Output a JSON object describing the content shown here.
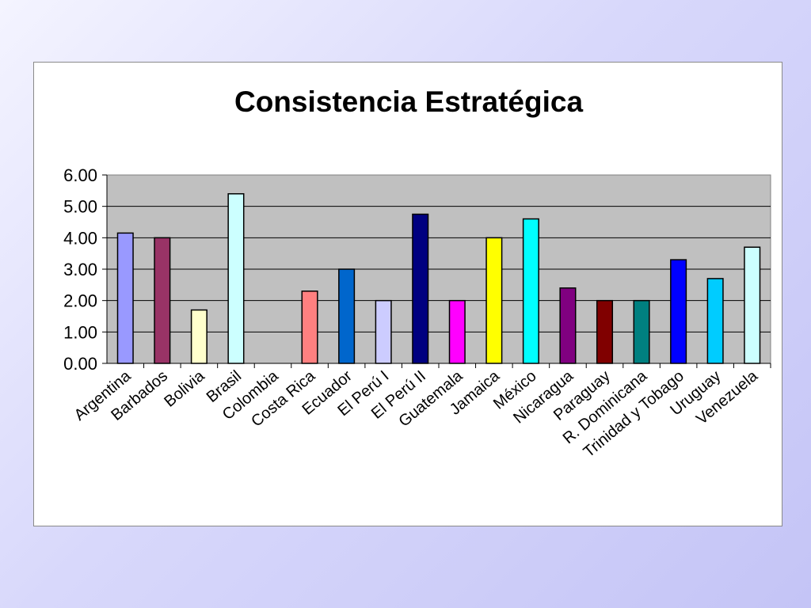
{
  "chart_data": {
    "type": "bar",
    "title": "Consistencia Estratégica",
    "xlabel": "",
    "ylabel": "",
    "ylim": [
      0,
      6
    ],
    "yticks": [
      "0.00",
      "1.00",
      "2.00",
      "3.00",
      "4.00",
      "5.00",
      "6.00"
    ],
    "grid": true,
    "legend": "none",
    "categories": [
      "Argentina",
      "Barbados",
      "Bolivia",
      "Brasil",
      "Colombia",
      "Costa Rica",
      "Ecuador",
      "El Perú I",
      "El Perú II",
      "Guatemala",
      "Jamaica",
      "México",
      "Nicaragua",
      "Paraguay",
      "R. Dominicana",
      "Trinidad y Tobago",
      "Uruguay",
      "Venezuela"
    ],
    "values": [
      4.15,
      4.0,
      1.7,
      5.4,
      0.0,
      2.3,
      3.0,
      2.0,
      4.75,
      2.0,
      4.0,
      4.6,
      2.4,
      2.0,
      2.0,
      3.3,
      2.7,
      3.7
    ],
    "colors": [
      "#9999ff",
      "#993366",
      "#ffffcc",
      "#ccffff",
      "#ffffff",
      "#ff8080",
      "#0066cc",
      "#ccccff",
      "#000080",
      "#ff00ff",
      "#ffff00",
      "#00ffff",
      "#800080",
      "#800000",
      "#008080",
      "#0000ff",
      "#00ccff",
      "#ccffff"
    ],
    "plot_background": "#c0c0c0"
  }
}
